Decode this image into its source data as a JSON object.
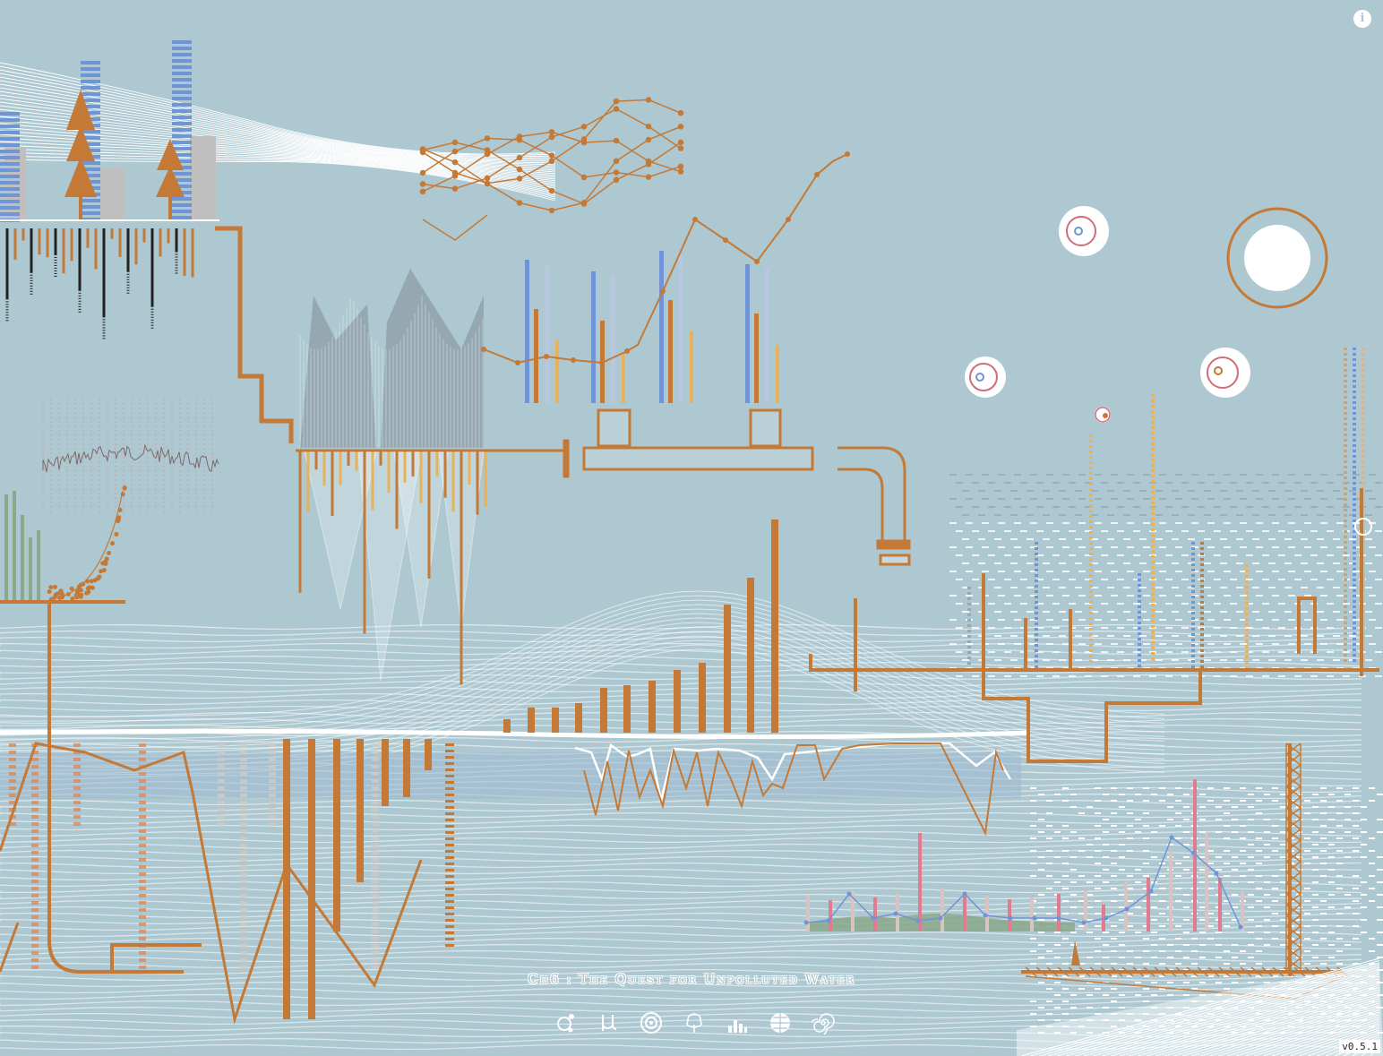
{
  "chapter_title": "Ch6 : The Quest for Unpolluted Water",
  "version": "v0.5.1",
  "info_label": "i",
  "nav": [
    {
      "icon": "molecule-icon"
    },
    {
      "icon": "mu-icon"
    },
    {
      "icon": "target-icon"
    },
    {
      "icon": "tree-icon"
    },
    {
      "icon": "bar-stack-icon"
    },
    {
      "icon": "globe-icon"
    },
    {
      "icon": "spiral-icon"
    }
  ],
  "colors": {
    "background": "#adc8d1",
    "pipe": "#c47a36",
    "blue": "#6f95d6",
    "gold": "#e8b25a",
    "grey": "#bfbfbf",
    "white": "#ffffff"
  }
}
